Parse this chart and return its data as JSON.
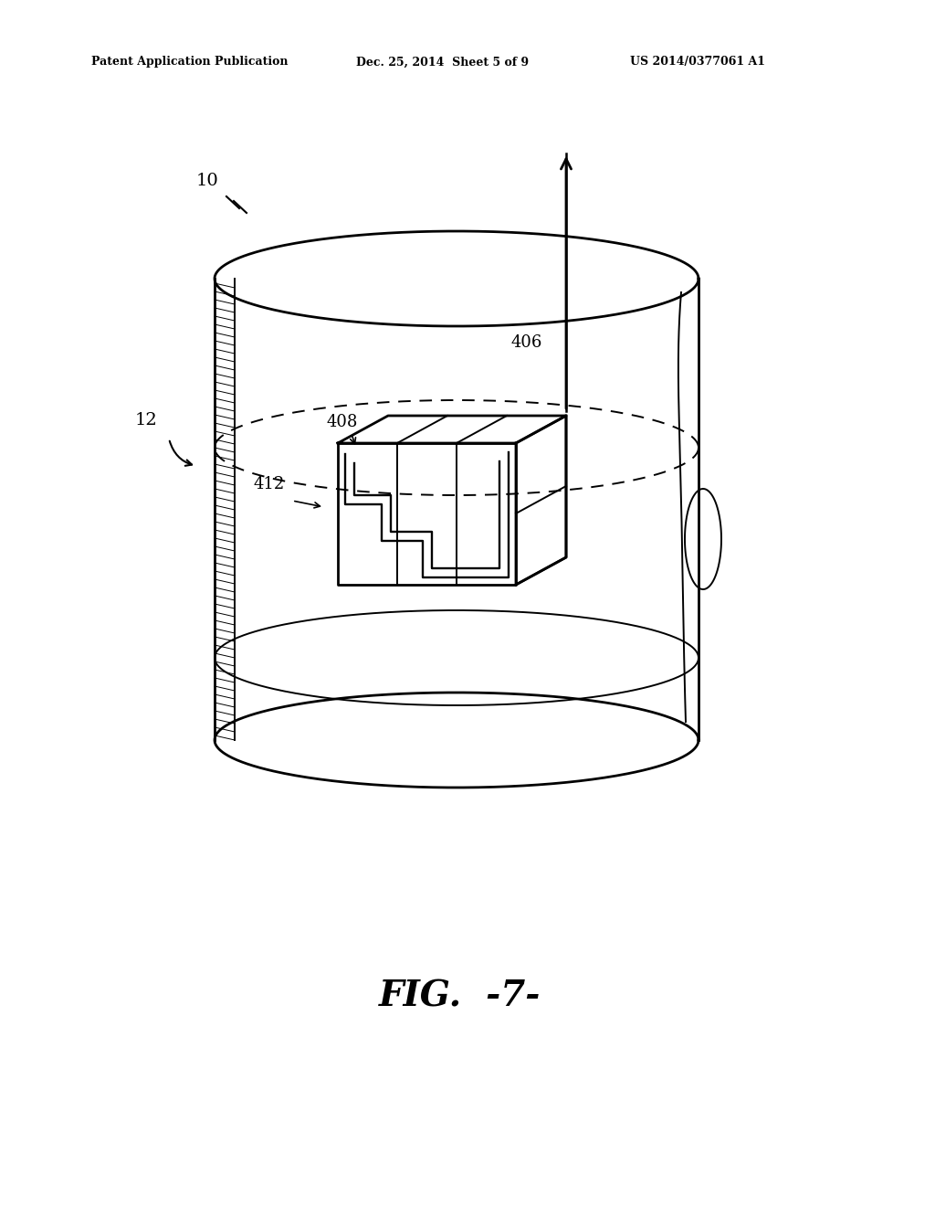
{
  "bg_color": "#ffffff",
  "header_left": "Patent Application Publication",
  "header_mid": "Dec. 25, 2014  Sheet 5 of 9",
  "header_right": "US 2014/0377061 A1",
  "fig_label": "FIG.  -7-",
  "label_10": "10",
  "label_12": "12",
  "label_406": "406",
  "label_408": "408",
  "label_412": "412",
  "lc": "#000000",
  "lw_main": 2.0,
  "lw_thin": 1.4
}
